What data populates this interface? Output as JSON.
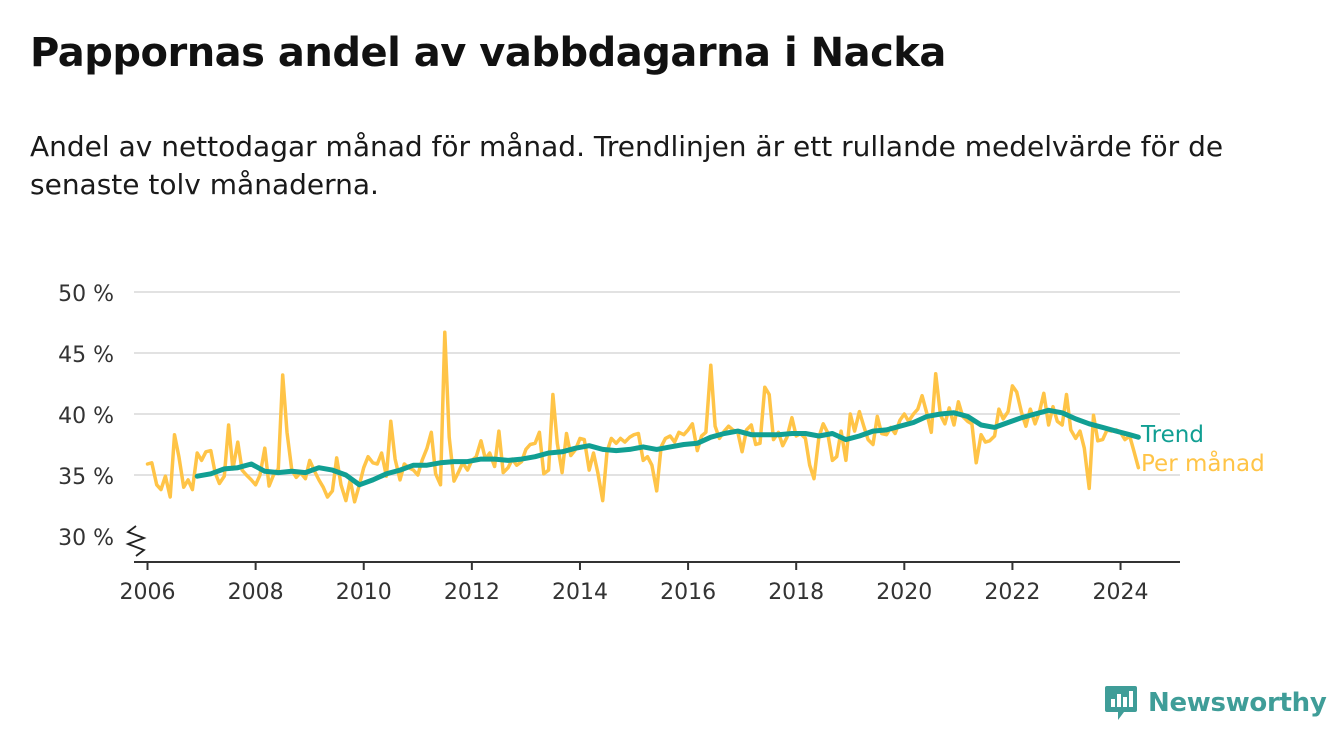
{
  "header": {
    "title": "Pappornas andel av vabbdagarna i Nacka",
    "subtitle": "Andel av nettodagar månad för månad. Trendlinjen är ett rullande medelvärde för de senaste tolv månaderna."
  },
  "brand": {
    "name": "Newsworthy",
    "icon": "newsworthy-logo-icon",
    "color": "#3f9d98"
  },
  "chart_data": {
    "type": "line",
    "title": "",
    "xlabel": "",
    "ylabel": "",
    "xlim": [
      2005.75,
      2025.1
    ],
    "ylim": [
      28,
      50
    ],
    "y_axis_break": true,
    "grid": true,
    "x_ticks": [
      2006,
      2008,
      2010,
      2012,
      2014,
      2016,
      2018,
      2020,
      2022,
      2024
    ],
    "x_tick_labels": [
      "2006",
      "2008",
      "2010",
      "2012",
      "2014",
      "2016",
      "2018",
      "2020",
      "2022",
      "2024"
    ],
    "y_ticks": [
      30,
      35,
      40,
      45,
      50
    ],
    "y_tick_labels": [
      "30 %",
      "35 %",
      "40 %",
      "45 %",
      "50 %"
    ],
    "legend": "inline-end-labels",
    "series": [
      {
        "name": "Per månad",
        "color": "#ffc447",
        "x": [
          2006.0,
          2006.08,
          2006.17,
          2006.25,
          2006.33,
          2006.42,
          2006.5,
          2006.58,
          2006.67,
          2006.75,
          2006.83,
          2006.92,
          2007.0,
          2007.08,
          2007.17,
          2007.25,
          2007.33,
          2007.42,
          2007.5,
          2007.58,
          2007.67,
          2007.75,
          2007.83,
          2007.92,
          2008.0,
          2008.08,
          2008.17,
          2008.25,
          2008.33,
          2008.42,
          2008.5,
          2008.58,
          2008.67,
          2008.75,
          2008.83,
          2008.92,
          2009.0,
          2009.08,
          2009.17,
          2009.25,
          2009.33,
          2009.42,
          2009.5,
          2009.58,
          2009.67,
          2009.75,
          2009.83,
          2009.92,
          2010.0,
          2010.08,
          2010.17,
          2010.25,
          2010.33,
          2010.42,
          2010.5,
          2010.58,
          2010.67,
          2010.75,
          2010.83,
          2010.92,
          2011.0,
          2011.08,
          2011.17,
          2011.25,
          2011.33,
          2011.42,
          2011.5,
          2011.58,
          2011.67,
          2011.75,
          2011.83,
          2011.92,
          2012.0,
          2012.08,
          2012.17,
          2012.25,
          2012.33,
          2012.42,
          2012.5,
          2012.58,
          2012.67,
          2012.75,
          2012.83,
          2012.92,
          2013.0,
          2013.08,
          2013.17,
          2013.25,
          2013.33,
          2013.42,
          2013.5,
          2013.58,
          2013.67,
          2013.75,
          2013.83,
          2013.92,
          2014.0,
          2014.08,
          2014.17,
          2014.25,
          2014.33,
          2014.42,
          2014.5,
          2014.58,
          2014.67,
          2014.75,
          2014.83,
          2014.92,
          2015.0,
          2015.08,
          2015.17,
          2015.25,
          2015.33,
          2015.42,
          2015.5,
          2015.58,
          2015.67,
          2015.75,
          2015.83,
          2015.92,
          2016.0,
          2016.08,
          2016.17,
          2016.25,
          2016.33,
          2016.42,
          2016.5,
          2016.58,
          2016.67,
          2016.75,
          2016.83,
          2016.92,
          2017.0,
          2017.08,
          2017.17,
          2017.25,
          2017.33,
          2017.42,
          2017.5,
          2017.58,
          2017.67,
          2017.75,
          2017.83,
          2017.92,
          2018.0,
          2018.08,
          2018.17,
          2018.25,
          2018.33,
          2018.42,
          2018.5,
          2018.58,
          2018.67,
          2018.75,
          2018.83,
          2018.92,
          2019.0,
          2019.08,
          2019.17,
          2019.25,
          2019.33,
          2019.42,
          2019.5,
          2019.58,
          2019.67,
          2019.75,
          2019.83,
          2019.92,
          2020.0,
          2020.08,
          2020.17,
          2020.25,
          2020.33,
          2020.42,
          2020.5,
          2020.58,
          2020.67,
          2020.75,
          2020.83,
          2020.92,
          2021.0,
          2021.08,
          2021.17,
          2021.25,
          2021.33,
          2021.42,
          2021.5,
          2021.58,
          2021.67,
          2021.75,
          2021.83,
          2021.92,
          2022.0,
          2022.08,
          2022.17,
          2022.25,
          2022.33,
          2022.42,
          2022.5,
          2022.58,
          2022.67,
          2022.75,
          2022.83,
          2022.92,
          2023.0,
          2023.08,
          2023.17,
          2023.25,
          2023.33,
          2023.42,
          2023.5,
          2023.58,
          2023.67,
          2023.75,
          2023.83,
          2023.92,
          2024.0,
          2024.08,
          2024.17,
          2024.25,
          2024.33
        ],
        "values": [
          35.9,
          36.0,
          34.2,
          33.8,
          34.9,
          33.2,
          38.3,
          36.5,
          34.0,
          34.6,
          33.8,
          36.8,
          36.2,
          36.9,
          37.0,
          35.2,
          34.3,
          34.9,
          39.1,
          35.5,
          37.7,
          35.4,
          35.0,
          34.6,
          34.2,
          35.0,
          37.2,
          34.1,
          35.0,
          35.5,
          43.2,
          38.5,
          35.4,
          34.8,
          35.2,
          34.7,
          36.2,
          35.4,
          34.6,
          34.0,
          33.2,
          33.7,
          36.4,
          34.2,
          32.9,
          34.6,
          32.8,
          34.2,
          35.6,
          36.5,
          36.0,
          35.9,
          36.8,
          34.9,
          39.4,
          36.3,
          34.6,
          35.9,
          35.6,
          35.4,
          35.0,
          36.2,
          37.2,
          38.5,
          35.1,
          34.2,
          46.7,
          38.1,
          34.5,
          35.2,
          36.0,
          35.4,
          36.2,
          36.5,
          37.8,
          36.3,
          36.8,
          35.7,
          38.6,
          35.2,
          35.6,
          36.3,
          35.8,
          36.1,
          37.1,
          37.5,
          37.6,
          38.5,
          35.1,
          35.4,
          41.6,
          37.6,
          35.2,
          38.4,
          36.6,
          37.1,
          38.0,
          37.9,
          35.4,
          36.8,
          35.2,
          32.9,
          36.9,
          38.0,
          37.6,
          38.0,
          37.7,
          38.1,
          38.3,
          38.4,
          36.2,
          36.5,
          35.8,
          33.7,
          37.3,
          38.0,
          38.2,
          37.7,
          38.5,
          38.3,
          38.7,
          39.2,
          37.0,
          38.2,
          38.5,
          44.0,
          39.0,
          38.0,
          38.6,
          39.0,
          38.7,
          38.5,
          36.9,
          38.7,
          39.1,
          37.5,
          37.6,
          42.2,
          41.6,
          37.9,
          38.5,
          37.4,
          38.1,
          39.7,
          38.2,
          38.4,
          38.0,
          35.8,
          34.7,
          38.1,
          39.2,
          38.5,
          36.2,
          36.5,
          38.6,
          36.2,
          40.0,
          38.6,
          40.2,
          39.0,
          37.9,
          37.5,
          39.8,
          38.4,
          38.3,
          38.9,
          38.4,
          39.5,
          40.0,
          39.4,
          40.0,
          40.4,
          41.5,
          40.0,
          38.5,
          43.3,
          39.9,
          39.2,
          40.5,
          39.1,
          41.0,
          39.8,
          39.4,
          39.2,
          36.0,
          38.3,
          37.7,
          37.8,
          38.2,
          40.4,
          39.6,
          40.2,
          42.3,
          41.8,
          40.1,
          39.0,
          40.4,
          39.2,
          40.2,
          41.7,
          39.1,
          40.6,
          39.4,
          39.1,
          41.6,
          38.7,
          38.0,
          38.6,
          37.2,
          33.9,
          39.9,
          37.8,
          37.9,
          38.7,
          38.6,
          38.7,
          38.5,
          37.9,
          38.2,
          36.9,
          35.6
        ]
      },
      {
        "name": "Trend",
        "color": "#119f93",
        "x": [
          2006.92,
          2007.17,
          2007.42,
          2007.67,
          2007.92,
          2008.17,
          2008.42,
          2008.67,
          2008.92,
          2009.17,
          2009.42,
          2009.67,
          2009.92,
          2010.17,
          2010.42,
          2010.67,
          2010.92,
          2011.17,
          2011.42,
          2011.67,
          2011.92,
          2012.17,
          2012.42,
          2012.67,
          2012.92,
          2013.17,
          2013.42,
          2013.67,
          2013.92,
          2014.17,
          2014.42,
          2014.67,
          2014.92,
          2015.17,
          2015.42,
          2015.67,
          2015.92,
          2016.17,
          2016.42,
          2016.67,
          2016.92,
          2017.17,
          2017.42,
          2017.67,
          2017.92,
          2018.17,
          2018.42,
          2018.67,
          2018.92,
          2019.17,
          2019.42,
          2019.67,
          2019.92,
          2020.17,
          2020.42,
          2020.67,
          2020.92,
          2021.17,
          2021.42,
          2021.67,
          2021.92,
          2022.17,
          2022.42,
          2022.67,
          2022.92,
          2023.17,
          2023.42,
          2023.67,
          2023.92,
          2024.17,
          2024.33
        ],
        "values": [
          34.9,
          35.1,
          35.5,
          35.6,
          35.9,
          35.3,
          35.2,
          35.3,
          35.2,
          35.6,
          35.4,
          35.0,
          34.2,
          34.6,
          35.1,
          35.4,
          35.8,
          35.8,
          36.0,
          36.1,
          36.1,
          36.3,
          36.3,
          36.2,
          36.3,
          36.5,
          36.8,
          36.9,
          37.2,
          37.4,
          37.1,
          37.0,
          37.1,
          37.3,
          37.1,
          37.3,
          37.5,
          37.6,
          38.1,
          38.4,
          38.6,
          38.3,
          38.3,
          38.3,
          38.4,
          38.4,
          38.2,
          38.4,
          37.9,
          38.2,
          38.6,
          38.7,
          39.0,
          39.3,
          39.8,
          40.0,
          40.1,
          39.8,
          39.1,
          38.9,
          39.3,
          39.7,
          40.0,
          40.3,
          40.1,
          39.6,
          39.2,
          38.9,
          38.6,
          38.3,
          38.1
        ]
      }
    ]
  }
}
